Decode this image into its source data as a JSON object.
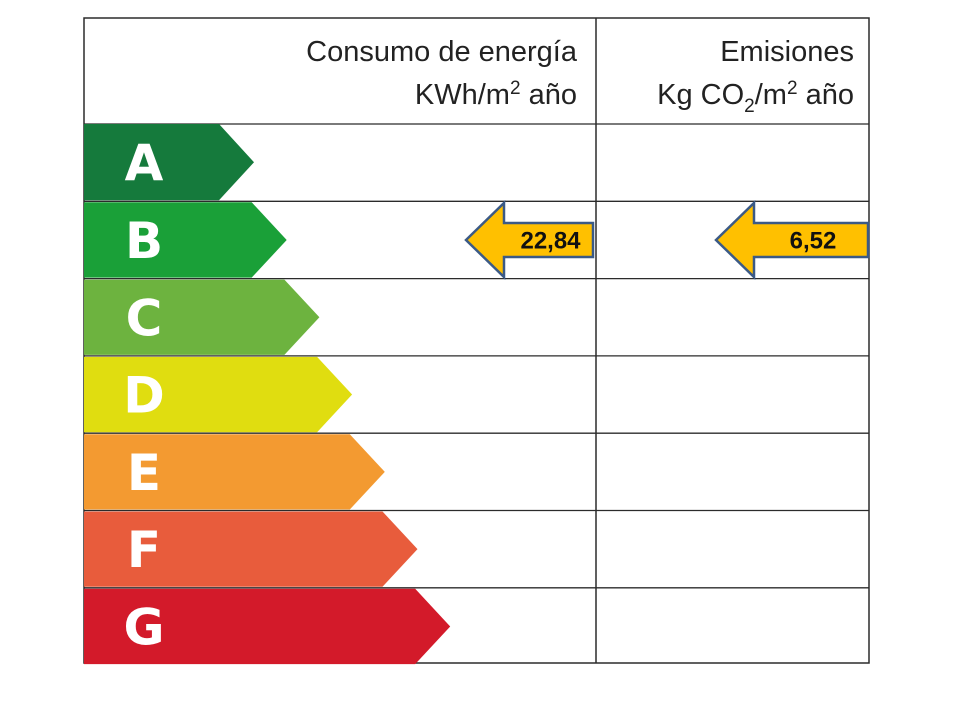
{
  "header": {
    "energy": {
      "line1": "Consumo de energía",
      "line2_unit": "KWh/m",
      "line2_sup": "2",
      "line2_tail": " año"
    },
    "emissions": {
      "line1": "Emisiones",
      "line2_pre": "Kg CO",
      "line2_sub": "2",
      "line2_mid": "/m",
      "line2_sup": "2",
      "line2_tail": " año"
    }
  },
  "classes": [
    {
      "letter": "A",
      "color": "#157a3c"
    },
    {
      "letter": "B",
      "color": "#1aa038"
    },
    {
      "letter": "C",
      "color": "#6db33f"
    },
    {
      "letter": "D",
      "color": "#e0dd10"
    },
    {
      "letter": "E",
      "color": "#f39a31"
    },
    {
      "letter": "F",
      "color": "#e85c3c"
    },
    {
      "letter": "G",
      "color": "#d31a2a"
    }
  ],
  "ratings": {
    "energy": {
      "value": "22,84",
      "class": "B"
    },
    "emissions": {
      "value": "6,52",
      "class": "B"
    }
  },
  "indicator_color": "#ffc000",
  "border_color": "#2b2b2b"
}
